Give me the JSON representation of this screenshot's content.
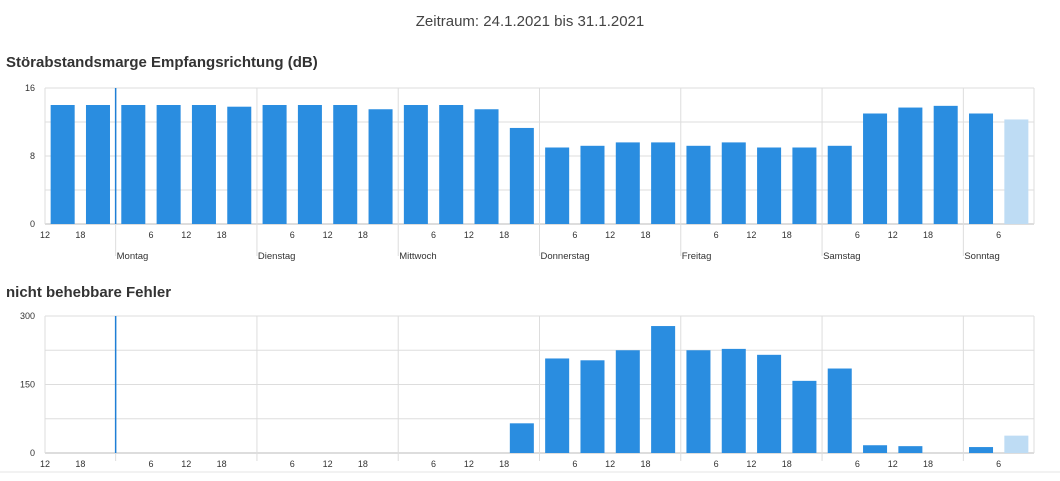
{
  "header": {
    "period": "Zeitraum: 24.1.2021 bis 31.1.2021"
  },
  "colors": {
    "bar": "#2a8de0",
    "bar_pending": "#bedcf4",
    "grid": "#dddddd",
    "marker": "#1f7fd6"
  },
  "chart_data": [
    {
      "type": "bar",
      "title": "Störabstandsmarge Empfangsrichtung (dB)",
      "ylim": [
        0,
        16
      ],
      "yticks": [
        0,
        8,
        16
      ],
      "hour_ticks": [
        "12",
        "18",
        "",
        "6",
        "12",
        "18",
        "",
        "6",
        "12",
        "18",
        "",
        "6",
        "12",
        "18",
        "",
        "6",
        "12",
        "18",
        "",
        "6",
        "12",
        "18",
        "",
        "6",
        "12",
        "18",
        "",
        "6",
        ""
      ],
      "day_labels": [
        "Montag",
        "Dienstag",
        "Mittwoch",
        "Donnerstag",
        "Freitag",
        "Samstag",
        "Sonntag"
      ],
      "values": [
        14.0,
        14.0,
        14.0,
        14.0,
        14.0,
        13.8,
        14.0,
        14.0,
        14.0,
        13.5,
        14.0,
        14.0,
        13.5,
        11.3,
        9.0,
        9.2,
        9.6,
        9.6,
        9.2,
        9.6,
        9.0,
        9.0,
        9.2,
        13.0,
        13.7,
        13.9,
        13.0,
        12.3
      ],
      "pending_index": 27,
      "grid": true
    },
    {
      "type": "bar",
      "title": "nicht behebbare Fehler",
      "ylim": [
        0,
        300
      ],
      "yticks": [
        0,
        150,
        300
      ],
      "hour_ticks": [
        "12",
        "18",
        "",
        "6",
        "12",
        "18",
        "",
        "6",
        "12",
        "18",
        "",
        "6",
        "12",
        "18",
        "",
        "6",
        "12",
        "18",
        "",
        "6",
        "12",
        "18",
        "",
        "6",
        "12",
        "18",
        "",
        "6",
        ""
      ],
      "values": [
        0,
        0,
        0,
        0,
        0,
        0,
        0,
        0,
        0,
        0,
        0,
        0,
        0,
        65,
        207,
        203,
        225,
        278,
        225,
        228,
        215,
        158,
        185,
        17,
        15,
        0,
        13,
        38
      ],
      "pending_index": 27,
      "grid": true
    }
  ]
}
